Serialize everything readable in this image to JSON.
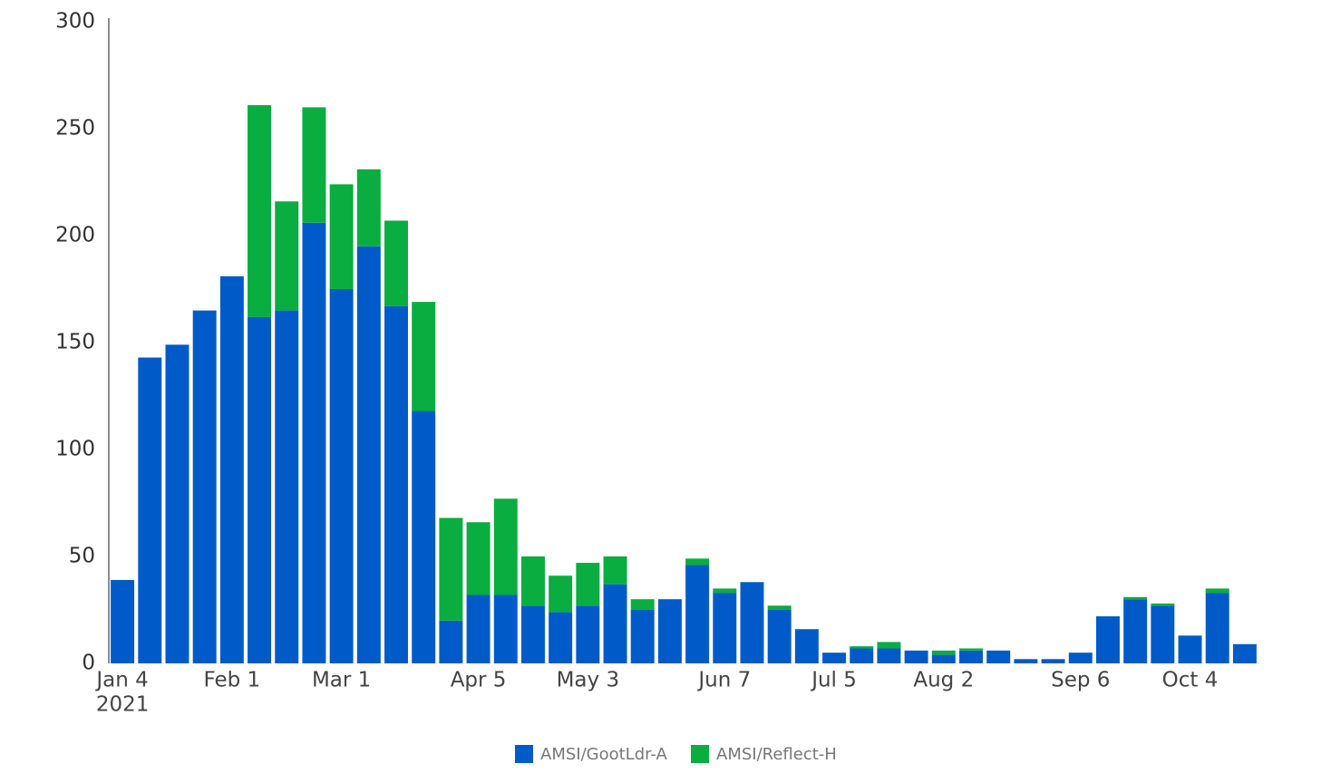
{
  "chart_data": {
    "type": "stacked_bar",
    "categories": [
      "Jan 4",
      null,
      null,
      null,
      "Feb 1",
      null,
      null,
      null,
      "Mar 1",
      null,
      null,
      null,
      null,
      "Apr 5",
      null,
      null,
      null,
      "May 3",
      null,
      null,
      null,
      null,
      "Jun 7",
      null,
      null,
      null,
      "Jul 5",
      null,
      null,
      null,
      "Aug 2",
      null,
      null,
      null,
      null,
      "Sep 6",
      null,
      null,
      null,
      "Oct 4",
      null,
      null
    ],
    "first_category_sublabel": "2021",
    "series": [
      {
        "name": "AMSI/GootLdr-A",
        "color": "#005bc9",
        "values": [
          39,
          143,
          149,
          165,
          181,
          162,
          165,
          206,
          175,
          195,
          167,
          118,
          20,
          32,
          32,
          27,
          24,
          27,
          37,
          25,
          30,
          46,
          33,
          38,
          25,
          16,
          5,
          7,
          7,
          6,
          4,
          6,
          6,
          2,
          2,
          5,
          22,
          30,
          27,
          13,
          33,
          9
        ]
      },
      {
        "name": "AMSI/Reflect-H",
        "color": "#0aad3f",
        "values": [
          0,
          0,
          0,
          0,
          0,
          99,
          51,
          54,
          49,
          36,
          40,
          51,
          48,
          34,
          45,
          23,
          17,
          20,
          13,
          5,
          0,
          3,
          2,
          0,
          2,
          0,
          0,
          1,
          3,
          0,
          2,
          1,
          0,
          0,
          0,
          0,
          0,
          1,
          1,
          0,
          2,
          0
        ]
      }
    ],
    "ylim": [
      0,
      300
    ],
    "yticks": [
      0,
      50,
      100,
      150,
      200,
      250,
      300
    ],
    "grid": false,
    "legend": "bottom"
  }
}
